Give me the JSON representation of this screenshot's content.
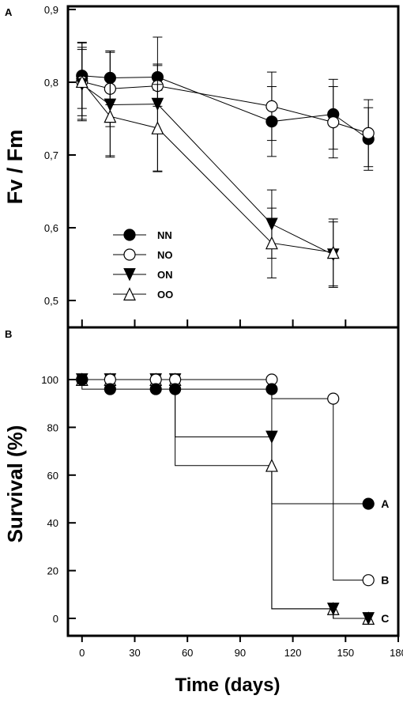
{
  "chart_data": [
    {
      "type": "line",
      "panel_label": "A",
      "ylabel": "Fv / Fm",
      "ylim": [
        0.5,
        0.9
      ],
      "y_ticks": [
        "0,5",
        "0,6",
        "0,7",
        "0,8",
        "0,9"
      ],
      "y_tick_values": [
        0.5,
        0.6,
        0.7,
        0.8,
        0.9
      ],
      "xlim": [
        -8,
        180
      ],
      "x_tick_positions": [
        0,
        30,
        60,
        90,
        120,
        150,
        180
      ],
      "legend_position": "bottom-left",
      "error_bars": true,
      "series": [
        {
          "name": "NN",
          "marker": "filled-circle",
          "x": [
            0,
            16,
            43,
            108,
            143,
            163
          ],
          "y": [
            0.809,
            0.806,
            0.807,
            0.746,
            0.756,
            0.722
          ],
          "err": [
            0.045,
            0.037,
            0.018,
            0.048,
            0.048,
            0.043
          ]
        },
        {
          "name": "NO",
          "marker": "open-circle",
          "x": [
            0,
            16,
            43,
            108,
            143,
            163
          ],
          "y": [
            0.801,
            0.791,
            0.795,
            0.767,
            0.745,
            0.73
          ],
          "err": [
            0.054,
            0.052,
            0.028,
            0.047,
            0.049,
            0.046
          ]
        },
        {
          "name": "ON",
          "marker": "filled-triangle-down",
          "x": [
            0,
            16,
            43,
            108,
            143
          ],
          "y": [
            0.797,
            0.769,
            0.77,
            0.605,
            0.563
          ],
          "err": [
            0.048,
            0.072,
            0.092,
            0.047,
            0.045
          ]
        },
        {
          "name": "OO",
          "marker": "open-triangle-up",
          "x": [
            0,
            16,
            43,
            108,
            143
          ],
          "y": [
            0.801,
            0.753,
            0.737,
            0.579,
            0.566
          ],
          "err": [
            0.047,
            0.054,
            0.06,
            0.048,
            0.046
          ]
        }
      ]
    },
    {
      "type": "line",
      "subtype": "step",
      "panel_label": "B",
      "ylabel": "Survival (%)",
      "xlabel": "Time (days)",
      "ylim": [
        -4,
        116
      ],
      "y_ticks": [
        "0",
        "20",
        "40",
        "60",
        "80",
        "100"
      ],
      "y_tick_values": [
        0,
        20,
        40,
        60,
        80,
        100
      ],
      "xlim": [
        -8,
        180
      ],
      "x_ticks": [
        "0",
        "30",
        "60",
        "90",
        "120",
        "150",
        "180"
      ],
      "x_tick_values": [
        0,
        30,
        60,
        90,
        120,
        150,
        180
      ],
      "series": [
        {
          "name": "NN",
          "marker": "filled-circle",
          "group_letter": "A",
          "x": [
            0,
            16,
            42,
            53,
            108,
            163
          ],
          "y": [
            100,
            96,
            96,
            96,
            96,
            48
          ]
        },
        {
          "name": "NO",
          "marker": "open-circle",
          "group_letter": "B",
          "x": [
            0,
            16,
            42,
            53,
            108,
            143,
            163
          ],
          "y": [
            100,
            100,
            100,
            100,
            100,
            92,
            16
          ]
        },
        {
          "name": "ON",
          "marker": "filled-triangle-down",
          "group_letter": "",
          "x": [
            0,
            16,
            42,
            53,
            108,
            143,
            163
          ],
          "y": [
            100,
            100,
            100,
            100,
            76,
            4,
            0
          ]
        },
        {
          "name": "OO",
          "marker": "open-triangle-up",
          "group_letter": "C",
          "x": [
            0,
            16,
            42,
            53,
            108,
            143,
            163
          ],
          "y": [
            100,
            100,
            100,
            100,
            64,
            4,
            0
          ]
        }
      ]
    }
  ]
}
